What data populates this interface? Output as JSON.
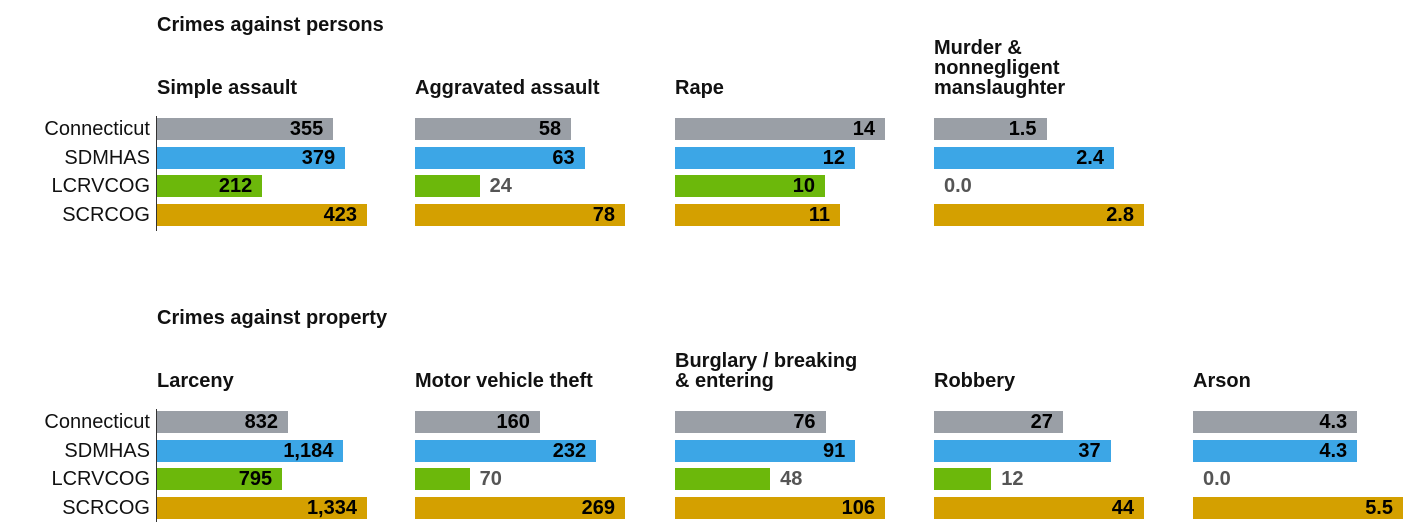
{
  "chart_data": {
    "type": "bar",
    "categories": [
      "Connecticut",
      "SDMHAS",
      "LCRVCOG",
      "SCRCOG"
    ],
    "colors": [
      "#9a9fa6",
      "#3ca6e6",
      "#6cb80b",
      "#d4a000"
    ],
    "groups": [
      {
        "title": "Crimes against persons",
        "panels": [
          {
            "title": "Simple assault",
            "values": [
              355,
              379,
              212,
              423
            ]
          },
          {
            "title": "Aggravated assault",
            "values": [
              58,
              63,
              24,
              78
            ]
          },
          {
            "title": "Rape",
            "values": [
              14,
              12,
              10,
              11
            ]
          },
          {
            "title": "Murder &\nnonnegligent\nmanslaughter",
            "values": [
              1.5,
              2.4,
              0,
              2.8
            ],
            "value_labels": [
              "1.5",
              "2.4",
              "0.0",
              "2.8"
            ]
          }
        ]
      },
      {
        "title": "Crimes against property",
        "panels": [
          {
            "title": "Larceny",
            "values": [
              832,
              1184,
              795,
              1334
            ],
            "value_labels": [
              "832",
              "1,184",
              "795",
              "1,334"
            ]
          },
          {
            "title": "Motor vehicle theft",
            "values": [
              160,
              232,
              70,
              269
            ]
          },
          {
            "title": "Burglary / breaking\n& entering",
            "values": [
              76,
              91,
              48,
              106
            ]
          },
          {
            "title": "Robbery",
            "values": [
              27,
              37,
              12,
              44
            ]
          },
          {
            "title": "Arson",
            "values": [
              4.3,
              4.3,
              0,
              5.5
            ],
            "value_labels": [
              "4.3",
              "4.3",
              "0.0",
              "5.5"
            ]
          }
        ]
      }
    ]
  }
}
